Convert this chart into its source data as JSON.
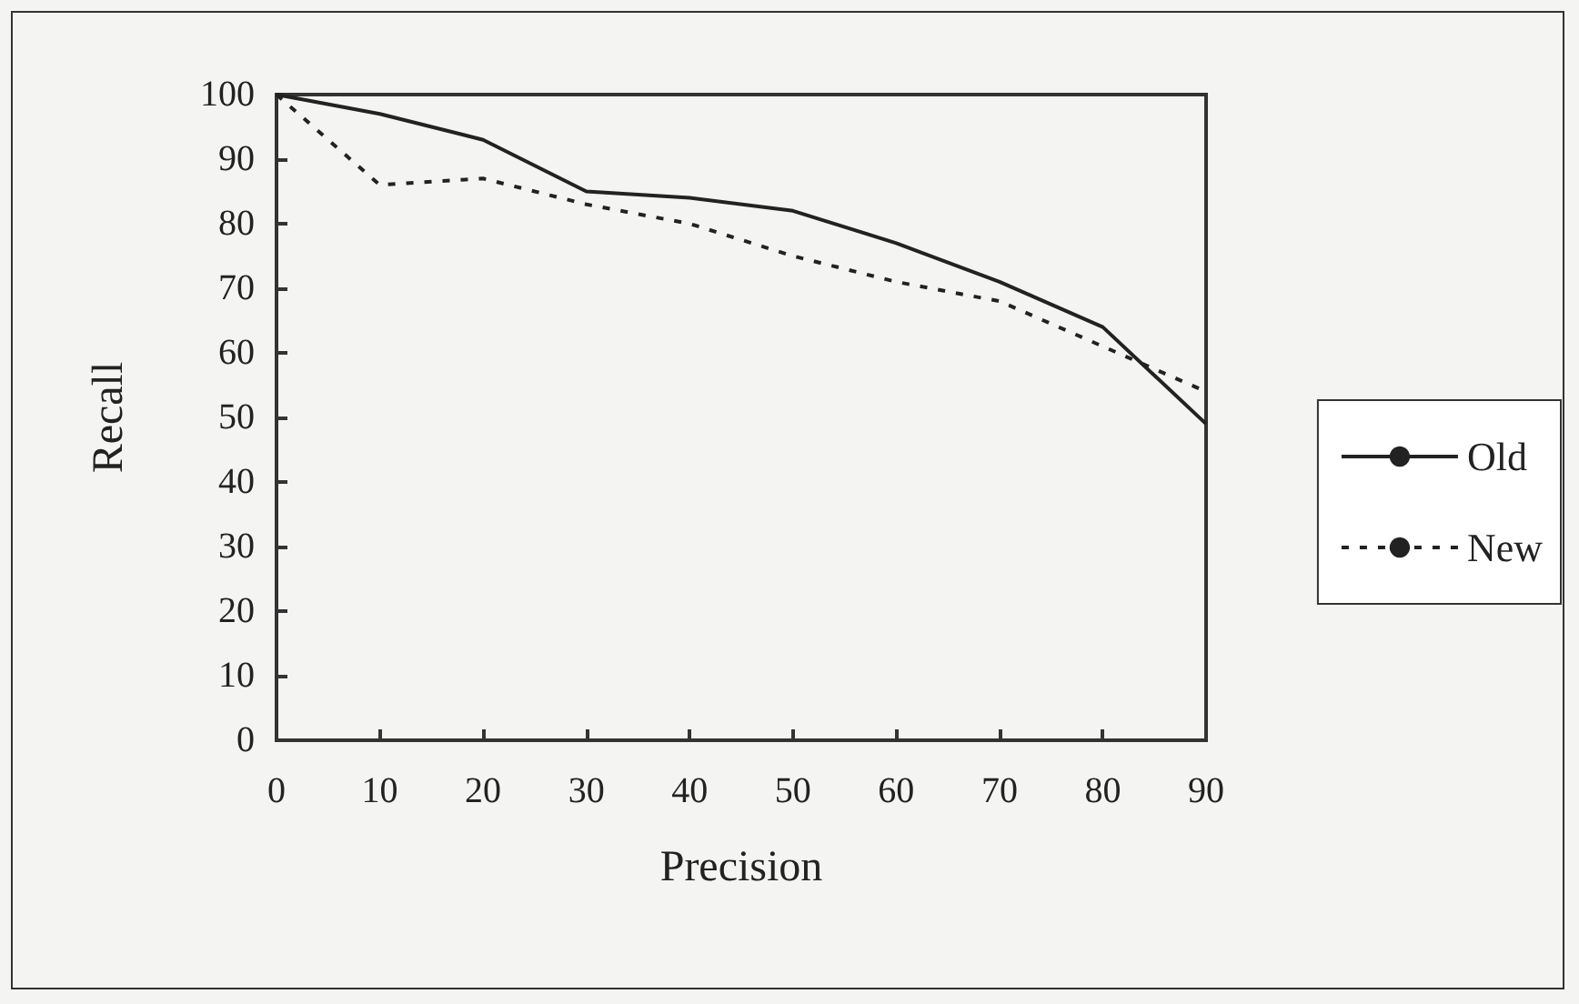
{
  "chart_data": {
    "type": "line",
    "xlabel": "Precision",
    "ylabel": "Recall",
    "x": [
      0,
      10,
      20,
      30,
      40,
      50,
      60,
      70,
      80,
      90
    ],
    "series": [
      {
        "name": "Old",
        "color": "#222222",
        "line_style": "solid",
        "values": [
          100,
          97,
          93,
          85,
          84,
          82,
          77,
          71,
          64,
          49
        ]
      },
      {
        "name": "New",
        "color": "#222222",
        "line_style": "dotted",
        "values": [
          100,
          86,
          87,
          83,
          80,
          75,
          71,
          68,
          61,
          54
        ]
      }
    ],
    "xlim": [
      0,
      90
    ],
    "xticks": [
      0,
      10,
      20,
      30,
      40,
      50,
      60,
      70,
      80,
      90
    ],
    "ylim": [
      0,
      100
    ],
    "yticks": [
      0,
      10,
      20,
      30,
      40,
      50,
      60,
      70,
      80,
      90,
      100
    ],
    "grid": false,
    "legend": "right",
    "marker": "none"
  }
}
